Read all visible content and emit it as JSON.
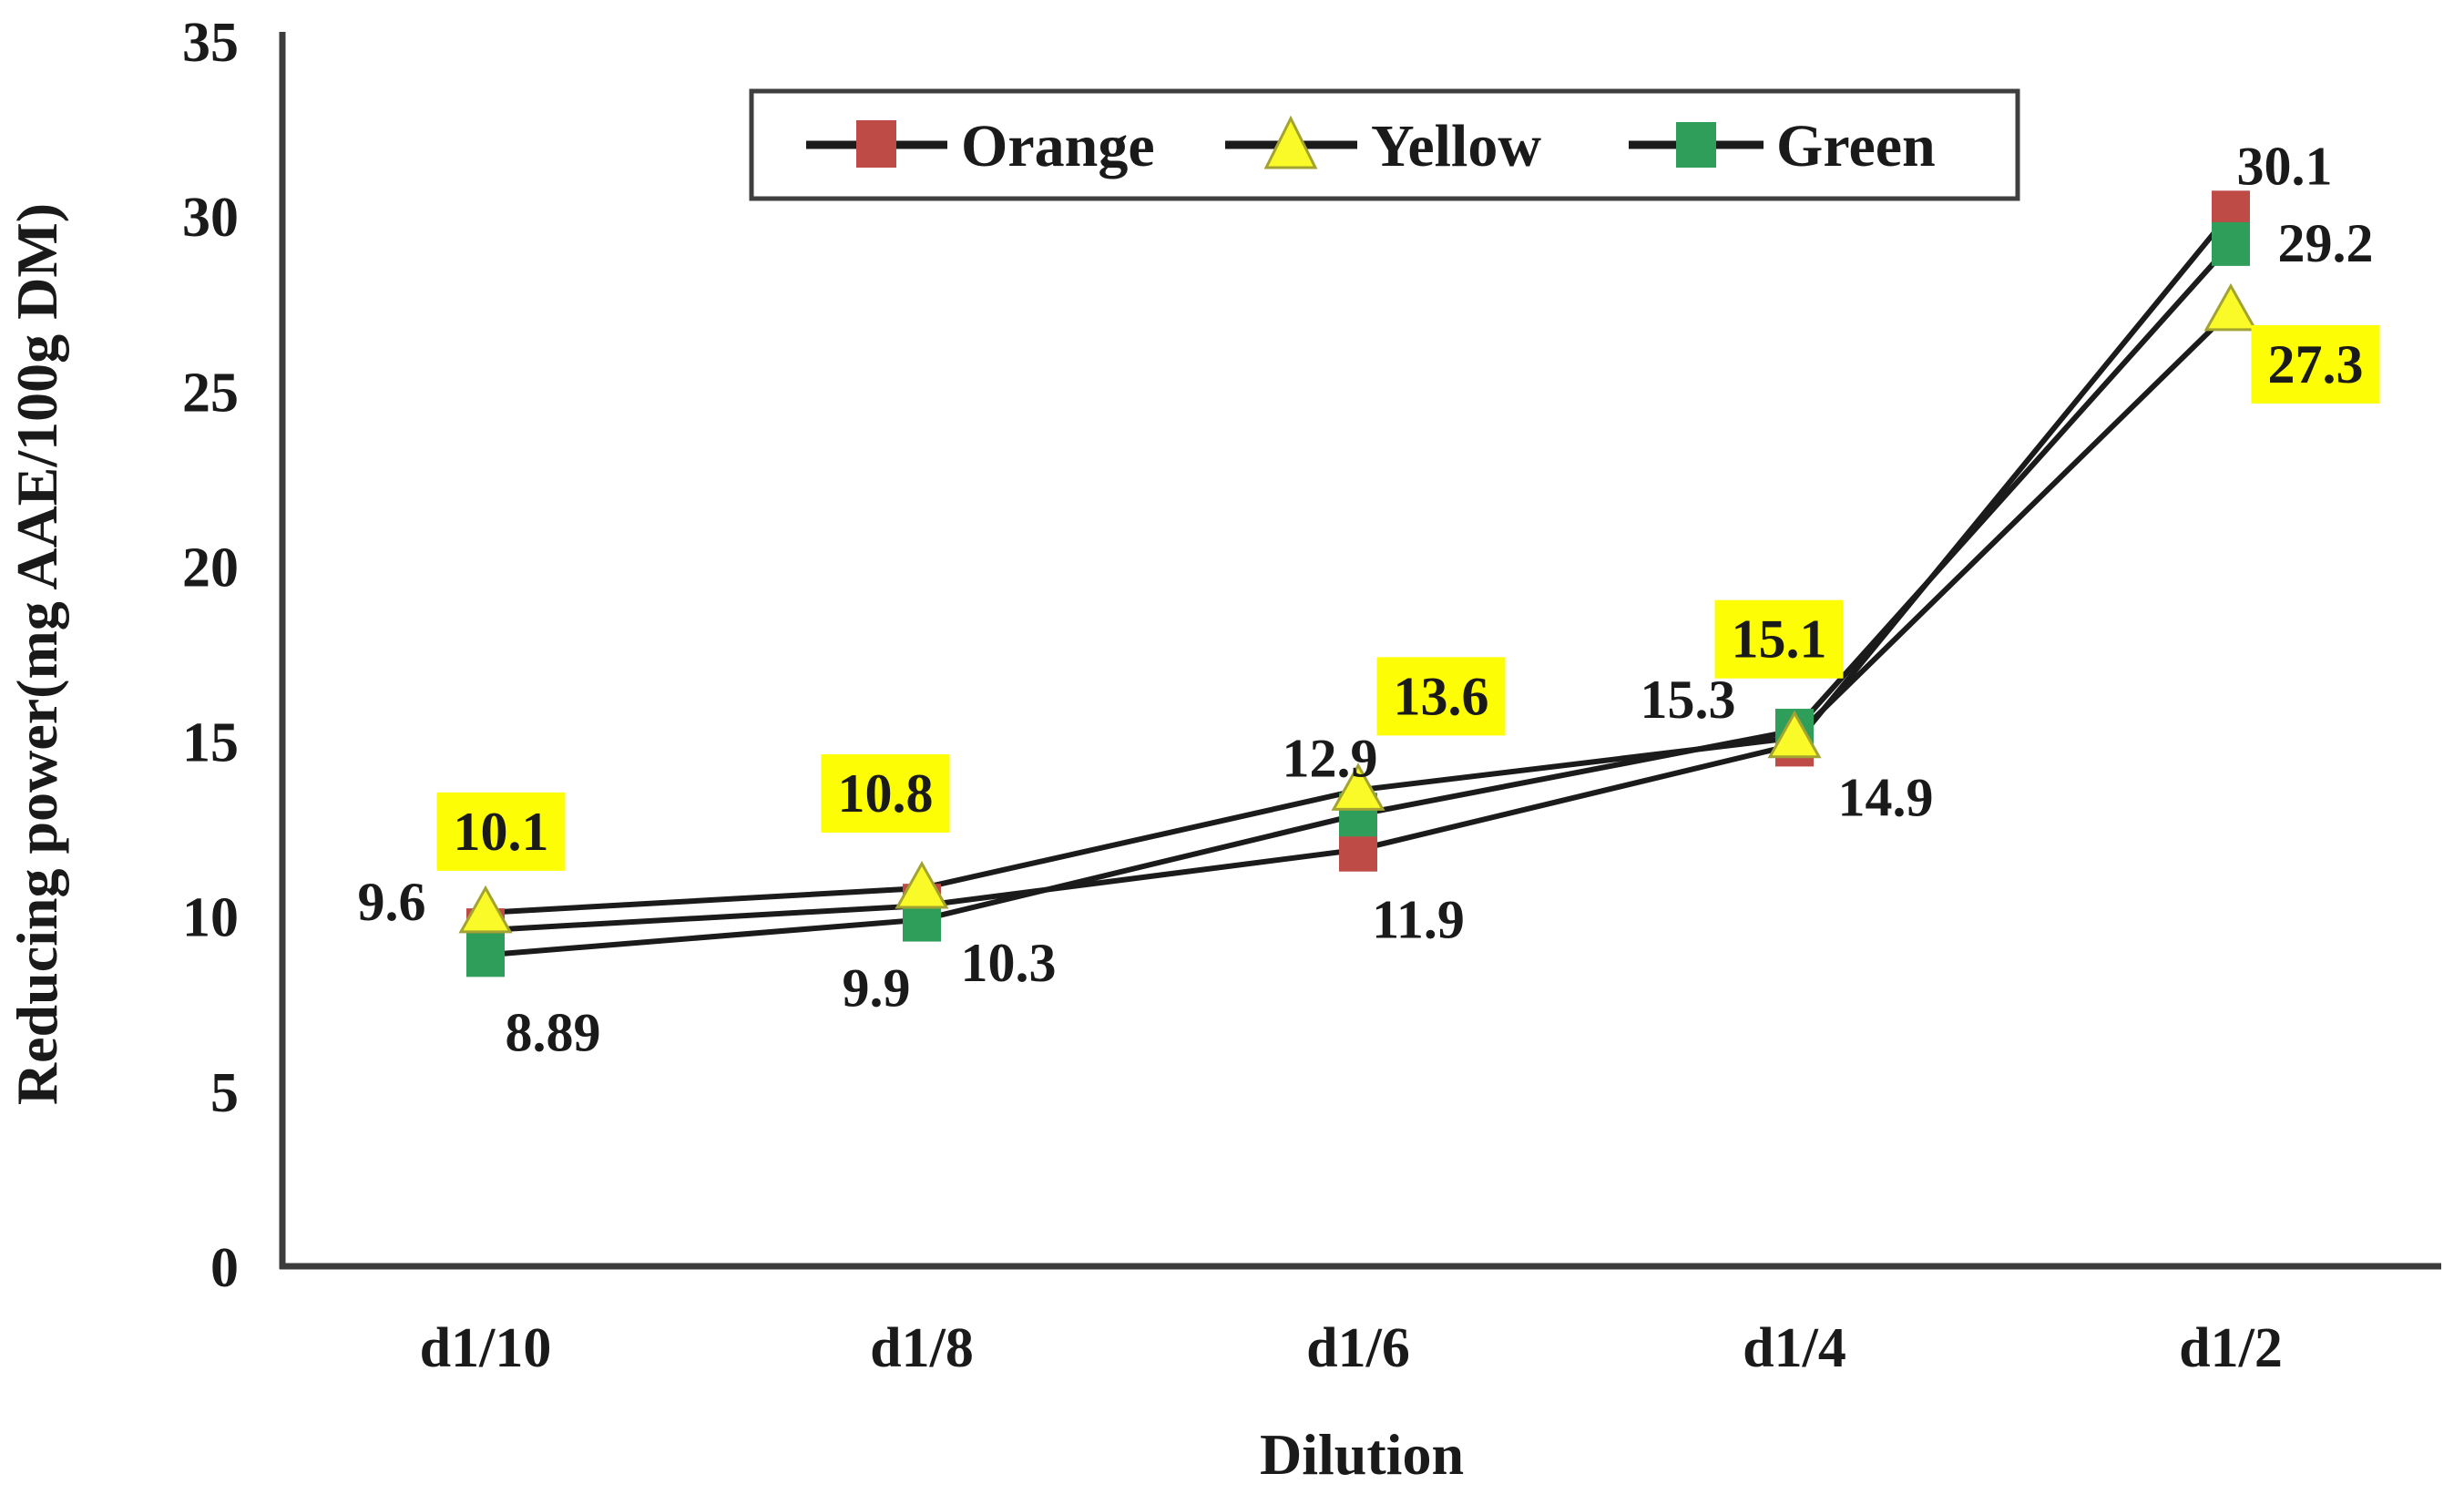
{
  "chart_data": {
    "type": "line",
    "title": "",
    "xlabel": "Dilution",
    "ylabel": "Reducing power(mg AAE/100g DM)",
    "categories": [
      "d1/10",
      "d1/8",
      "d1/6",
      "d1/4",
      "d1/2"
    ],
    "y_ticks": [
      "0",
      "5",
      "10",
      "15",
      "20",
      "25",
      "30",
      "35"
    ],
    "ylim": [
      0,
      35
    ],
    "grid": false,
    "legend_position": "top-center",
    "line_color": "#1b1b1b",
    "axis_color": "#3c3c3c",
    "highlight_color": "#fdfd05",
    "series": [
      {
        "name": "Orange",
        "marker": "square",
        "marker_color": "#bf4b47",
        "label_color": "#e8202e",
        "label_highlight": false,
        "values": [
          9.6,
          10.3,
          11.9,
          14.9,
          30.1
        ],
        "labels": [
          "9.6",
          "10.3",
          "11.9",
          "14.9",
          "30.1"
        ],
        "label_offsets": [
          [
            -103,
            -31
          ],
          [
            95,
            63
          ],
          [
            66,
            77
          ],
          [
            100,
            58
          ],
          [
            59,
            -51
          ]
        ]
      },
      {
        "name": "Yellow",
        "marker": "triangle",
        "marker_color": "#fafa28",
        "marker_stroke": "#a3a332",
        "label_color": "#111111",
        "label_highlight": true,
        "values": [
          10.1,
          10.8,
          13.6,
          15.1,
          27.3
        ],
        "labels": [
          "10.1",
          "10.8",
          "13.6",
          "15.1",
          "27.3"
        ],
        "label_offsets": [
          [
            17,
            -89
          ],
          [
            -40,
            -104
          ],
          [
            91,
            -103
          ],
          [
            -17,
            -108
          ],
          [
            93,
            59
          ]
        ]
      },
      {
        "name": "Green",
        "marker": "square",
        "marker_color": "#2f9e5b",
        "label_color": "#2aa36d",
        "label_highlight": false,
        "values": [
          8.89,
          9.9,
          12.9,
          15.3,
          29.2
        ],
        "labels": [
          "8.89",
          "9.9",
          "12.9",
          "15.3",
          "29.2"
        ],
        "label_offsets": [
          [
            74,
            85
          ],
          [
            -50,
            75
          ],
          [
            -31,
            -62
          ],
          [
            -117,
            -34
          ],
          [
            104,
            -1
          ]
        ]
      }
    ]
  }
}
